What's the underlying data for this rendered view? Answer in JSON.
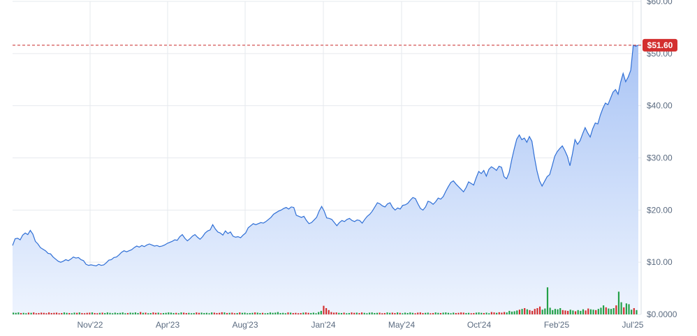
{
  "chart_data": {
    "type": "area",
    "title": "",
    "xlabel": "",
    "ylabel": "",
    "ylim": [
      0,
      60
    ],
    "y_ticks": [
      0,
      10,
      20,
      30,
      40,
      50,
      60
    ],
    "y_tick_labels": [
      "$0.0000",
      "$10.00",
      "$20.00",
      "$30.00",
      "$40.00",
      "$50.00",
      "$60.00"
    ],
    "x_ticks": [
      "Nov'22",
      "Apr'23",
      "Aug'23",
      "Jan'24",
      "May'24",
      "Oct'24",
      "Feb'25",
      "Jul'25"
    ],
    "grid": true,
    "current_price": 51.6,
    "current_price_label": "$51.60",
    "colors": {
      "line": "#2f6fd6",
      "fill_top": "#a9c4f5",
      "fill_bottom": "#eef4fe",
      "grid": "#e6e9ee",
      "price_line": "#c62828",
      "price_tag": "#d32f2f",
      "volume_up": "#23a047",
      "volume_down": "#d32f2f"
    },
    "series": [
      {
        "values": [
          13.2,
          14.5,
          14.6,
          14.3,
          15.2,
          15.6,
          15.3,
          16.1,
          15.4,
          14.0,
          13.5,
          12.8,
          12.5,
          12.2,
          11.7,
          11.6,
          11.0,
          10.6,
          10.2,
          10.0,
          10.2,
          10.5,
          10.3,
          10.6,
          11.0,
          10.8,
          10.9,
          10.5,
          10.3,
          9.6,
          9.4,
          9.5,
          9.4,
          9.3,
          9.6,
          9.4,
          9.5,
          9.9,
          10.4,
          10.5,
          10.9,
          11.0,
          11.4,
          11.9,
          12.2,
          12.0,
          12.2,
          12.4,
          12.8,
          13.1,
          12.9,
          13.2,
          13.0,
          13.3,
          13.5,
          13.3,
          13.1,
          13.2,
          13.0,
          13.1,
          13.3,
          13.6,
          13.8,
          14.0,
          14.3,
          14.2,
          14.9,
          15.3,
          14.6,
          14.1,
          14.5,
          15.0,
          15.3,
          14.8,
          14.4,
          14.9,
          15.6,
          16.0,
          16.2,
          17.2,
          16.4,
          15.8,
          15.6,
          15.2,
          16.0,
          15.5,
          15.8,
          15.0,
          14.8,
          14.9,
          14.7,
          15.2,
          15.6,
          16.6,
          17.0,
          17.4,
          17.2,
          17.4,
          17.6,
          17.5,
          17.8,
          18.2,
          18.6,
          19.2,
          19.5,
          19.8,
          20.0,
          20.3,
          20.5,
          20.2,
          20.6,
          20.5,
          19.0,
          18.8,
          18.6,
          18.8,
          18.0,
          17.4,
          17.6,
          18.1,
          18.6,
          19.8,
          20.7,
          19.8,
          18.5,
          18.4,
          18.2,
          17.6,
          17.0,
          17.6,
          18.0,
          17.8,
          18.2,
          18.4,
          18.0,
          17.8,
          18.1,
          18.0,
          17.5,
          18.2,
          18.8,
          19.2,
          19.8,
          20.6,
          21.4,
          21.2,
          20.8,
          20.6,
          21.2,
          21.4,
          20.5,
          20.0,
          20.4,
          20.2,
          20.9,
          21.0,
          21.3,
          21.9,
          22.4,
          22.2,
          21.2,
          20.3,
          20.0,
          20.6,
          21.7,
          21.5,
          21.1,
          21.6,
          22.3,
          22.1,
          22.6,
          23.6,
          24.5,
          25.3,
          25.6,
          25.0,
          24.5,
          24.0,
          23.5,
          24.3,
          25.4,
          25.1,
          24.8,
          26.2,
          27.4,
          27.0,
          27.6,
          26.5,
          27.8,
          28.3,
          28.0,
          27.6,
          28.4,
          28.2,
          26.4,
          26.0,
          27.2,
          29.6,
          31.7,
          33.6,
          34.4,
          33.5,
          33.8,
          33.0,
          34.1,
          33.2,
          30.1,
          27.5,
          25.6,
          24.6,
          25.5,
          26.4,
          26.8,
          28.5,
          30.3,
          31.2,
          31.8,
          32.3,
          31.4,
          30.3,
          28.5,
          30.8,
          33.5,
          32.6,
          33.3,
          34.6,
          35.8,
          34.8,
          34.0,
          35.6,
          36.7,
          36.5,
          38.2,
          39.5,
          40.5,
          40.2,
          41.4,
          42.6,
          43.1,
          42.2,
          44.5,
          46.2,
          44.6,
          45.5,
          46.8,
          51.6,
          51.4,
          51.6
        ]
      }
    ],
    "volume": {
      "values": [
        0.45,
        0.4,
        0.5,
        0.35,
        0.4,
        0.3,
        0.45,
        0.4,
        0.5,
        0.3,
        0.35,
        0.45,
        0.4,
        0.3,
        0.5,
        0.35,
        0.4,
        0.45,
        0.3,
        0.35,
        0.5,
        0.4,
        0.35,
        0.3,
        0.45,
        0.4,
        0.5,
        0.35,
        0.3,
        0.4,
        0.45,
        0.5,
        0.35,
        0.3,
        0.4,
        0.45,
        0.35,
        0.5,
        0.4,
        0.3,
        0.45,
        0.35,
        0.4,
        0.5,
        0.3,
        0.35,
        0.45,
        0.4,
        0.5,
        0.35,
        0.6,
        0.4,
        0.45,
        0.3,
        0.35,
        0.5,
        0.4,
        0.45,
        0.3,
        0.35,
        0.4,
        0.5,
        0.45,
        0.35,
        0.4,
        0.3,
        0.5,
        0.45,
        0.35,
        0.4,
        0.3,
        0.35,
        0.5,
        0.4,
        0.45,
        0.35,
        0.4,
        0.3,
        0.5,
        0.45,
        0.35,
        0.4,
        0.55,
        0.5,
        0.35,
        0.4,
        0.45,
        0.3,
        0.35,
        0.5,
        0.4,
        0.45,
        0.3,
        0.35,
        0.4,
        0.5,
        0.45,
        0.35,
        0.4,
        0.3,
        0.35,
        0.5,
        0.4,
        0.45,
        0.6,
        0.35,
        0.4,
        0.3,
        0.5,
        0.45,
        0.35,
        0.4,
        0.3,
        0.35,
        0.45,
        0.5,
        0.4,
        0.35,
        0.45,
        0.3,
        0.6,
        0.9,
        2.2,
        1.6,
        1.1,
        0.6,
        0.45,
        0.5,
        0.4,
        0.35,
        0.45,
        0.3,
        0.35,
        0.5,
        0.4,
        0.45,
        0.35,
        0.5,
        0.4,
        0.3,
        0.45,
        0.5,
        0.35,
        0.4,
        0.45,
        0.3,
        0.35,
        0.5,
        0.4,
        0.45,
        0.35,
        0.5,
        0.4,
        0.3,
        0.45,
        0.35,
        0.5,
        0.4,
        0.3,
        0.45,
        0.5,
        0.35,
        0.4,
        0.45,
        0.3,
        0.35,
        0.5,
        0.4,
        0.35,
        0.45,
        0.5,
        0.4,
        0.3,
        0.45,
        0.35,
        0.4,
        0.5,
        0.45,
        0.35,
        0.4,
        0.3,
        0.35,
        0.45,
        0.5,
        0.4,
        0.35,
        0.45,
        0.3,
        0.6,
        0.5,
        0.4,
        0.55,
        0.45,
        0.6,
        0.5,
        0.9,
        0.7,
        0.8,
        1.0,
        1.2,
        1.4,
        1.6,
        1.3,
        1.1,
        0.9,
        1.4,
        1.6,
        2.0,
        1.2,
        1.5,
        6.9,
        1.7,
        1.1,
        1.4,
        1.3,
        1.6,
        1.1,
        1.0,
        0.9,
        1.2,
        1.0,
        0.8,
        1.1,
        0.9,
        1.3,
        1.0,
        1.5,
        1.3,
        1.2,
        1.1,
        1.4,
        1.7,
        2.3,
        1.8,
        1.5,
        1.4,
        1.6,
        2.3,
        5.8,
        3.1,
        1.8,
        2.8,
        2.6,
        1.2,
        1.6,
        1.1
      ],
      "ylim": [
        0,
        80
      ]
    }
  }
}
